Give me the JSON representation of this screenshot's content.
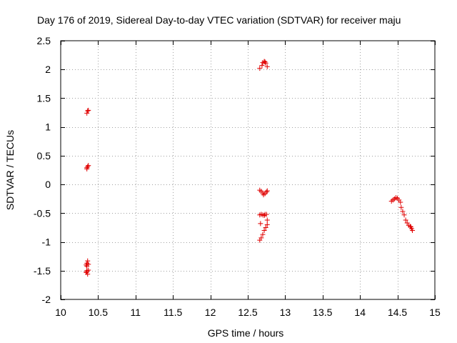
{
  "chart_data": {
    "type": "scatter",
    "title": "Day 176 of 2019, Sidereal Day-to-day VTEC variation (SDTVAR) for receiver maju",
    "xlabel": "GPS time / hours",
    "ylabel": "SDTVAR / TECUs",
    "xlim": [
      10,
      15
    ],
    "ylim": [
      -2,
      2.5
    ],
    "x_ticks": [
      10,
      10.5,
      11,
      11.5,
      12,
      12.5,
      13,
      13.5,
      14,
      14.5,
      15
    ],
    "x_tick_labels": [
      "10",
      "10.5",
      "11",
      "11.5",
      "12",
      "12.5",
      "13",
      "13.5",
      "14",
      "14.5",
      "15"
    ],
    "y_ticks": [
      -2,
      -1.5,
      -1,
      -0.5,
      0,
      0.5,
      1,
      1.5,
      2,
      2.5
    ],
    "y_tick_labels": [
      "-2",
      "-1.5",
      "-1",
      "-0.5",
      "0",
      "0.5",
      "1",
      "1.5",
      "2",
      "2.5"
    ],
    "grid": true,
    "marker": "+",
    "color": "#e00000",
    "series": [
      {
        "name": "SDTVAR",
        "points": [
          [
            10.35,
            1.24
          ],
          [
            10.36,
            1.28
          ],
          [
            10.37,
            1.29
          ],
          [
            10.35,
            0.29
          ],
          [
            10.36,
            0.31
          ],
          [
            10.37,
            0.33
          ],
          [
            10.35,
            0.27
          ],
          [
            10.35,
            -1.37
          ],
          [
            10.36,
            -1.33
          ],
          [
            10.34,
            -1.4
          ],
          [
            10.35,
            -1.42
          ],
          [
            10.37,
            -1.39
          ],
          [
            10.35,
            -1.5
          ],
          [
            10.34,
            -1.53
          ],
          [
            10.36,
            -1.56
          ],
          [
            10.37,
            -1.49
          ],
          [
            10.35,
            -1.52
          ],
          [
            12.66,
            2.02
          ],
          [
            12.69,
            2.07
          ],
          [
            12.7,
            2.12
          ],
          [
            12.72,
            2.14
          ],
          [
            12.73,
            2.13
          ],
          [
            12.74,
            2.11
          ],
          [
            12.76,
            2.05
          ],
          [
            12.66,
            -0.1
          ],
          [
            12.68,
            -0.12
          ],
          [
            12.7,
            -0.15
          ],
          [
            12.71,
            -0.18
          ],
          [
            12.73,
            -0.16
          ],
          [
            12.75,
            -0.13
          ],
          [
            12.76,
            -0.11
          ],
          [
            12.66,
            -0.53
          ],
          [
            12.68,
            -0.52
          ],
          [
            12.7,
            -0.53
          ],
          [
            12.72,
            -0.54
          ],
          [
            12.73,
            -0.52
          ],
          [
            12.75,
            -0.52
          ],
          [
            12.76,
            -0.62
          ],
          [
            12.67,
            -0.68
          ],
          [
            12.76,
            -0.7
          ],
          [
            12.74,
            -0.75
          ],
          [
            12.72,
            -0.8
          ],
          [
            12.7,
            -0.87
          ],
          [
            12.68,
            -0.93
          ],
          [
            12.66,
            -0.97
          ],
          [
            14.42,
            -0.29
          ],
          [
            14.44,
            -0.27
          ],
          [
            14.46,
            -0.25
          ],
          [
            14.48,
            -0.23
          ],
          [
            14.5,
            -0.24
          ],
          [
            14.52,
            -0.27
          ],
          [
            14.54,
            -0.31
          ],
          [
            14.55,
            -0.4
          ],
          [
            14.57,
            -0.47
          ],
          [
            14.59,
            -0.53
          ],
          [
            14.61,
            -0.62
          ],
          [
            14.63,
            -0.67
          ],
          [
            14.65,
            -0.71
          ],
          [
            14.67,
            -0.73
          ],
          [
            14.68,
            -0.74
          ],
          [
            14.69,
            -0.77
          ],
          [
            14.7,
            -0.8
          ]
        ]
      }
    ]
  }
}
